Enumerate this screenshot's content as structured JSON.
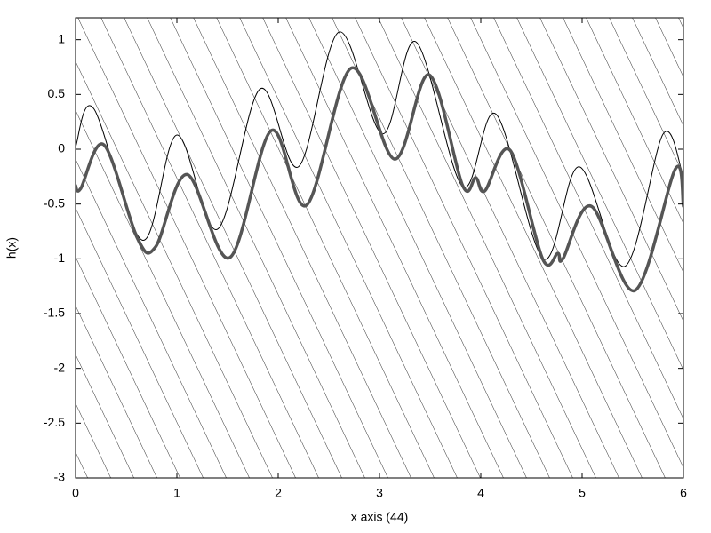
{
  "chart_data": {
    "type": "line",
    "x_label": "x axis (44)",
    "y_label": "h(x)",
    "xlim": [
      0,
      6
    ],
    "ylim": [
      -3,
      1.2
    ],
    "xticks": [
      0,
      1,
      2,
      3,
      4,
      5,
      6
    ],
    "yticks": [
      1,
      0.5,
      0,
      -0.5,
      -1,
      -1.5,
      -2,
      -2.5,
      -3
    ],
    "series": [
      {
        "color": "#000000",
        "width": 1,
        "x": [
          0,
          0.18,
          0.66,
          1.0,
          1.4,
          1.82,
          2.2,
          2.6,
          3.03,
          3.36,
          3.82,
          4.15,
          4.62,
          4.97,
          5.42,
          5.8,
          6
        ],
        "values": [
          0.02,
          0.37,
          -0.83,
          0.13,
          -0.73,
          0.55,
          -0.16,
          1.07,
          0.14,
          0.98,
          -0.34,
          0.32,
          -1.0,
          -0.16,
          -1.07,
          0.14,
          -0.26
        ]
      },
      {
        "color": "#555555",
        "width": 3.5,
        "x": [
          0,
          0.05,
          0.28,
          0.61,
          0.79,
          1.1,
          1.52,
          1.93,
          2.28,
          2.72,
          3.15,
          3.49,
          3.82,
          3.95,
          4.04,
          4.29,
          4.61,
          4.76,
          4.81,
          5.09,
          5.52,
          5.92,
          6
        ],
        "values": [
          -0.33,
          -0.36,
          0.04,
          -0.81,
          -0.89,
          -0.23,
          -0.99,
          0.17,
          -0.51,
          0.74,
          -0.09,
          0.68,
          -0.33,
          -0.26,
          -0.38,
          -0.01,
          -1.0,
          -0.95,
          -1.0,
          -0.52,
          -1.29,
          -0.18,
          -0.52
        ]
      }
    ]
  }
}
